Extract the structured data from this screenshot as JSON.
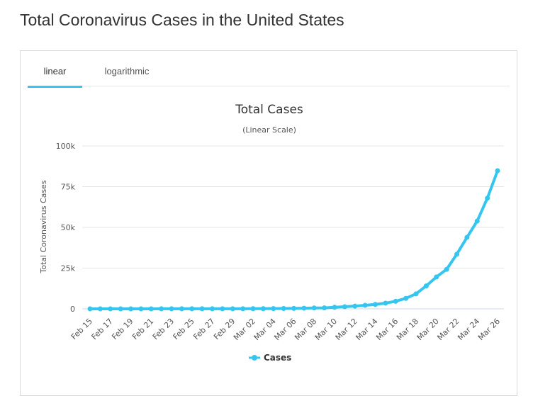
{
  "page": {
    "title": "Total Coronavirus Cases in the United States"
  },
  "tabs": [
    {
      "label": "linear",
      "active": true
    },
    {
      "label": "logarithmic",
      "active": false
    }
  ],
  "colors": {
    "series": "#35c6f0",
    "grid": "#e6e6e6",
    "tab_underline": "#35c6f0"
  },
  "chart_data": {
    "type": "line",
    "title": "Total Cases",
    "subtitle": "(Linear Scale)",
    "ylabel": "Total Coronavirus Cases",
    "xlabel": "",
    "ylim": [
      0,
      100000
    ],
    "yticks": [
      0,
      25000,
      50000,
      75000,
      100000
    ],
    "ytick_labels": [
      "0",
      "25k",
      "50k",
      "75k",
      "100k"
    ],
    "grid": true,
    "legend_position": "bottom-center",
    "x_tick_labels": [
      "Feb 15",
      "Feb 17",
      "Feb 19",
      "Feb 21",
      "Feb 23",
      "Feb 25",
      "Feb 27",
      "Feb 29",
      "Mar 02",
      "Mar 04",
      "Mar 06",
      "Mar 08",
      "Mar 10",
      "Mar 12",
      "Mar 14",
      "Mar 16",
      "Mar 18",
      "Mar 20",
      "Mar 22",
      "Mar 24",
      "Mar 26"
    ],
    "x": [
      "Feb 15",
      "Feb 16",
      "Feb 17",
      "Feb 18",
      "Feb 19",
      "Feb 20",
      "Feb 21",
      "Feb 22",
      "Feb 23",
      "Feb 24",
      "Feb 25",
      "Feb 26",
      "Feb 27",
      "Feb 28",
      "Feb 29",
      "Mar 01",
      "Mar 02",
      "Mar 03",
      "Mar 04",
      "Mar 05",
      "Mar 06",
      "Mar 07",
      "Mar 08",
      "Mar 09",
      "Mar 10",
      "Mar 11",
      "Mar 12",
      "Mar 13",
      "Mar 14",
      "Mar 15",
      "Mar 16",
      "Mar 17",
      "Mar 18",
      "Mar 19",
      "Mar 20",
      "Mar 21",
      "Mar 22",
      "Mar 23",
      "Mar 24",
      "Mar 25",
      "Mar 26"
    ],
    "series": [
      {
        "name": "Cases",
        "values": [
          15,
          15,
          15,
          15,
          15,
          15,
          15,
          35,
          35,
          53,
          53,
          57,
          60,
          60,
          68,
          74,
          98,
          118,
          149,
          217,
          262,
          402,
          518,
          583,
          959,
          1281,
          1663,
          2179,
          2727,
          3499,
          4632,
          6421,
          9197,
          14091,
          19558,
          24238,
          33546,
          43877,
          53877,
          67917,
          84769
        ]
      }
    ]
  }
}
